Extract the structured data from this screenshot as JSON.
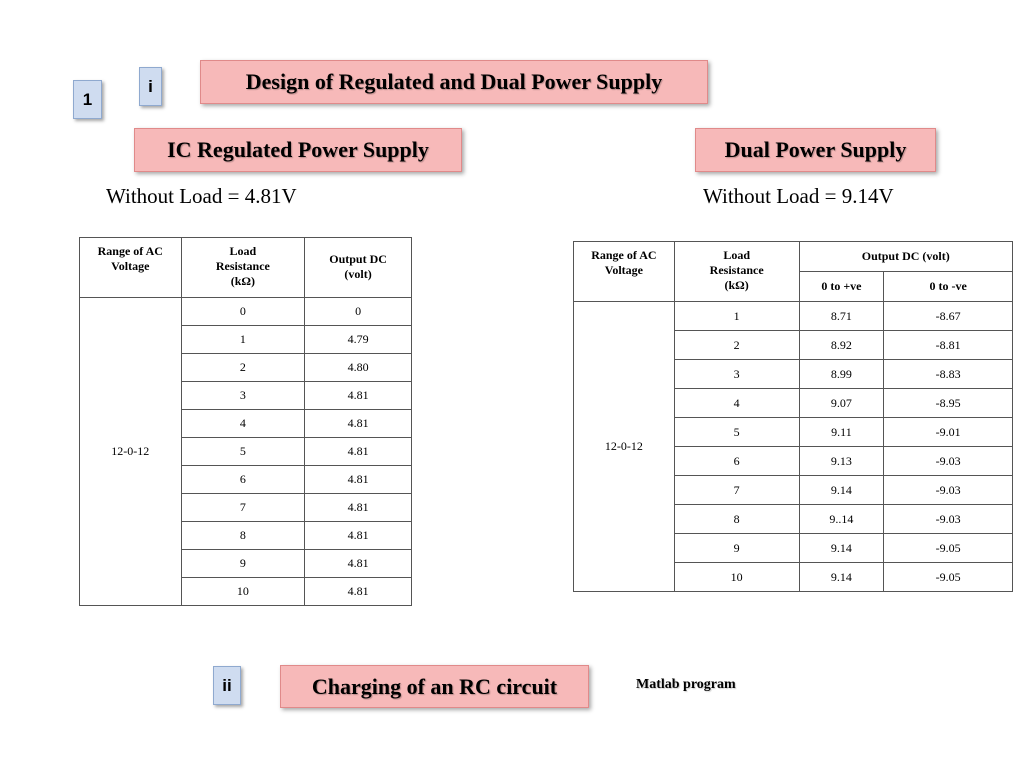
{
  "slide_number": "1",
  "section1": {
    "marker": "i",
    "title": "Design of Regulated and Dual Power Supply"
  },
  "ic_supply": {
    "title": "IC Regulated Power Supply",
    "without_load": "Without Load = 4.81V",
    "headers": {
      "range": "Range of AC Voltage",
      "load_line1": "Load",
      "load_line2": "Resistance",
      "load_line3": "(kΩ)",
      "output": "Output DC (volt)"
    },
    "range_value": "12-0-12",
    "rows": [
      {
        "load": "0",
        "output": "0"
      },
      {
        "load": "1",
        "output": "4.79"
      },
      {
        "load": "2",
        "output": "4.80"
      },
      {
        "load": "3",
        "output": "4.81"
      },
      {
        "load": "4",
        "output": "4.81"
      },
      {
        "load": "5",
        "output": "4.81"
      },
      {
        "load": "6",
        "output": "4.81"
      },
      {
        "load": "7",
        "output": "4.81"
      },
      {
        "load": "8",
        "output": "4.81"
      },
      {
        "load": "9",
        "output": "4.81"
      },
      {
        "load": "10",
        "output": "4.81"
      }
    ]
  },
  "dual_supply": {
    "title": "Dual Power Supply",
    "without_load": "Without Load = 9.14V",
    "headers": {
      "range": "Range of AC Voltage",
      "load_line1": "Load",
      "load_line2": "Resistance",
      "load_line3": "(kΩ)",
      "output": "Output DC (volt)",
      "pos": "0 to +ve",
      "neg": "0 to -ve"
    },
    "range_value": "12-0-12",
    "rows": [
      {
        "load": "1",
        "pos": "8.71",
        "neg": "-8.67"
      },
      {
        "load": "2",
        "pos": "8.92",
        "neg": "-8.81"
      },
      {
        "load": "3",
        "pos": "8.99",
        "neg": "-8.83"
      },
      {
        "load": "4",
        "pos": "9.07",
        "neg": "-8.95"
      },
      {
        "load": "5",
        "pos": "9.11",
        "neg": "-9.01"
      },
      {
        "load": "6",
        "pos": "9.13",
        "neg": "-9.03"
      },
      {
        "load": "7",
        "pos": "9.14",
        "neg": "-9.03"
      },
      {
        "load": "8",
        "pos": "9..14",
        "neg": "-9.03"
      },
      {
        "load": "9",
        "pos": "9.14",
        "neg": "-9.05"
      },
      {
        "load": "10",
        "pos": "9.14",
        "neg": "-9.05"
      }
    ]
  },
  "section2": {
    "marker": "ii",
    "title": "Charging of an RC circuit",
    "note": "Matlab program"
  }
}
